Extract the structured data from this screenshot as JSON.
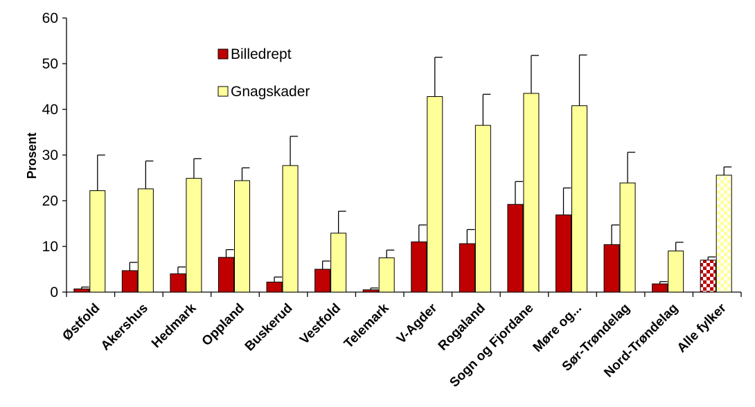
{
  "chart_data": {
    "type": "bar",
    "ylabel": "Prosent",
    "ylim": [
      0,
      60
    ],
    "yticks": [
      0,
      10,
      20,
      30,
      40,
      50,
      60
    ],
    "grid": false,
    "legend_position": "top-left",
    "categories": [
      "Østfold",
      "Akershus",
      "Hedmark",
      "Oppland",
      "Buskerud",
      "Vestfold",
      "Telemark",
      "V-Agder",
      "Rogaland",
      "Sogn og Fjordane",
      "Møre og...",
      "Sør-Trøndelag",
      "Nord-Trøndelag",
      "Alle fylker"
    ],
    "series": [
      {
        "name": "Billedrept",
        "color": "#c00000",
        "values": [
          0.7,
          4.7,
          4.0,
          7.6,
          2.2,
          5.0,
          0.5,
          11.0,
          10.6,
          19.2,
          16.9,
          10.4,
          1.8,
          7.0
        ],
        "error": [
          0.4,
          1.8,
          1.5,
          1.7,
          1.1,
          1.8,
          0.4,
          3.7,
          3.1,
          5.0,
          5.9,
          4.3,
          0.5,
          0.7
        ]
      },
      {
        "name": "Gnagskader",
        "color": "#ffff99",
        "values": [
          22.2,
          22.6,
          24.9,
          24.4,
          27.7,
          12.9,
          7.5,
          42.8,
          36.5,
          43.5,
          40.8,
          23.9,
          9.0,
          25.6
        ],
        "error": [
          7.8,
          6.1,
          4.3,
          2.8,
          6.4,
          4.8,
          1.7,
          8.6,
          6.8,
          8.3,
          11.1,
          6.7,
          1.9,
          1.8
        ]
      }
    ],
    "highlight_category": "Alle fylker",
    "highlight_pattern": "checkered"
  }
}
